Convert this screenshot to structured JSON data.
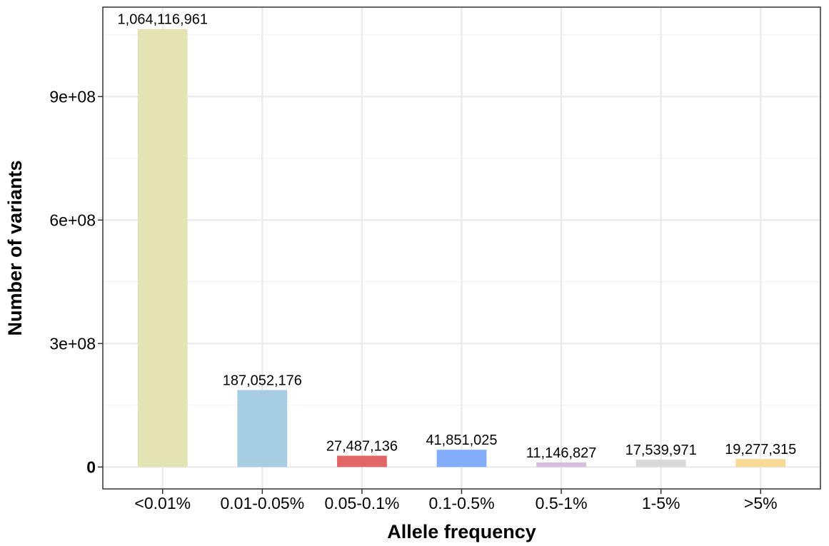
{
  "chart_data": {
    "type": "bar",
    "xlabel": "Allele frequency",
    "ylabel": "Number of variants",
    "categories": [
      "<0.01%",
      "0.01-0.05%",
      "0.05-0.1%",
      "0.1-0.5%",
      "0.5-1%",
      "1-5%",
      ">5%"
    ],
    "values": [
      1064116961,
      187052176,
      27487136,
      41851025,
      11146827,
      17539971,
      19277315
    ],
    "value_labels": [
      "1,064,116,961",
      "187,052,176",
      "27,487,136",
      "41,851,025",
      "11,146,827",
      "17,539,971",
      "19,277,315"
    ],
    "colors": [
      "#e4e3b3",
      "#a6cde2",
      "#e36666",
      "#82aefc",
      "#d7bde2",
      "#d9d9d9",
      "#f8d995"
    ],
    "y_ticks": [
      0,
      300000000,
      600000000,
      900000000
    ],
    "y_tick_labels": [
      "0",
      "3e+08",
      "6e+08",
      "9e+08"
    ],
    "ylim": [
      -53205848,
      1117322809
    ],
    "grid": true,
    "legend": "none"
  }
}
